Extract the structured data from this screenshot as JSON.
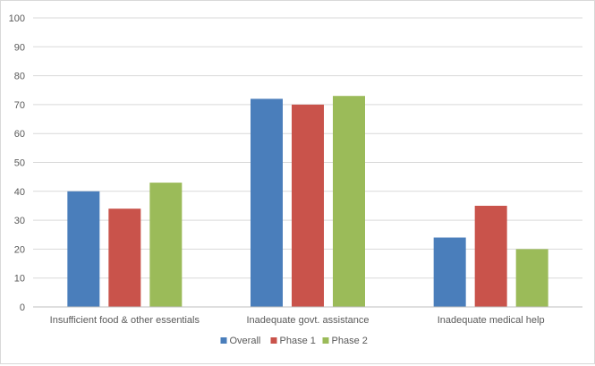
{
  "chart_data": {
    "type": "bar",
    "categories": [
      "Insufficient food & other essentials",
      "Inadequate govt. assistance",
      "Inadequate medical help"
    ],
    "series": [
      {
        "name": "Overall",
        "values": [
          40,
          72,
          24
        ],
        "color": "#4a7ebb"
      },
      {
        "name": "Phase 1",
        "values": [
          34,
          70,
          35
        ],
        "color": "#c9534b"
      },
      {
        "name": "Phase 2",
        "values": [
          43,
          73,
          20
        ],
        "color": "#9bbb59"
      }
    ],
    "title": "",
    "xlabel": "",
    "ylabel": "",
    "ylim": [
      0,
      100
    ],
    "yticks": [
      0,
      10,
      20,
      30,
      40,
      50,
      60,
      70,
      80,
      90,
      100
    ],
    "grid": true,
    "legend": "bottom-center"
  }
}
